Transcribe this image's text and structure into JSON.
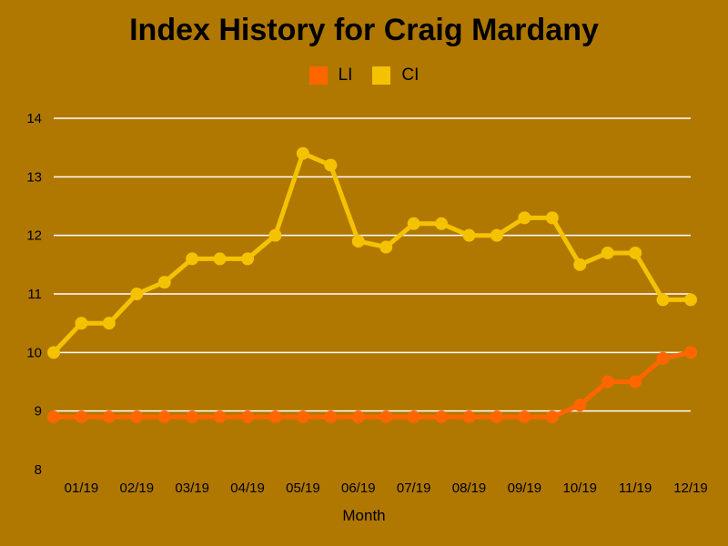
{
  "chart_data": {
    "type": "line",
    "title": "Index History for Craig Mardany",
    "xlabel": "Month",
    "ylabel": "",
    "ylim": [
      8,
      14
    ],
    "yticks": [
      8,
      9,
      10,
      11,
      12,
      13,
      14
    ],
    "x_tick_labels": [
      "01/19",
      "02/19",
      "03/19",
      "04/19",
      "05/19",
      "06/19",
      "07/19",
      "08/19",
      "09/19",
      "10/19",
      "11/19",
      "12/19"
    ],
    "grid": true,
    "legend_position": "top-center",
    "series": [
      {
        "name": "LI",
        "color": "#ff6600",
        "values": [
          8.9,
          8.9,
          8.9,
          8.9,
          8.9,
          8.9,
          8.9,
          8.9,
          8.9,
          8.9,
          8.9,
          8.9,
          8.9,
          8.9,
          8.9,
          8.9,
          8.9,
          8.9,
          8.9,
          9.1,
          9.5,
          9.5,
          9.9,
          10.0
        ]
      },
      {
        "name": "CI",
        "color": "#f5c200",
        "values": [
          10.0,
          10.5,
          10.5,
          11.0,
          11.2,
          11.6,
          11.6,
          11.6,
          12.0,
          13.4,
          13.2,
          11.9,
          11.8,
          12.2,
          12.2,
          12.0,
          12.0,
          12.3,
          12.3,
          11.5,
          11.7,
          11.7,
          10.9,
          10.9
        ]
      }
    ]
  },
  "colors": {
    "background": "#b07800",
    "grid": "#ffffff"
  }
}
